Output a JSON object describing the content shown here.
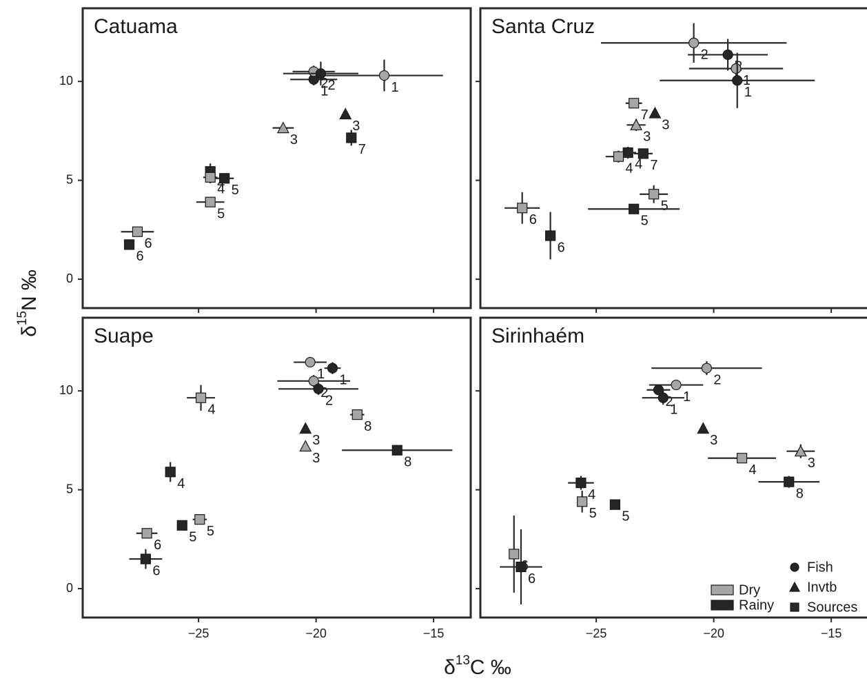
{
  "axis_labels": {
    "xlabel": [
      "δ",
      "13",
      "C ‰"
    ],
    "ylabel": [
      "δ",
      "15",
      "N ‰"
    ]
  },
  "legend": {
    "corner": "lower right",
    "seasons": [
      {
        "name": "Dry",
        "color": "#a6a6a6"
      },
      {
        "name": "Rainy",
        "color": "#262626"
      }
    ],
    "groups": [
      {
        "name": "Fish",
        "marker": "circle"
      },
      {
        "name": "Invtb",
        "marker": "triangle"
      },
      {
        "name": "Sources",
        "marker": "square"
      }
    ]
  },
  "chart_data": [
    {
      "type": "scatter",
      "title": "Catuama",
      "xlim": [
        -29.93,
        -13.42
      ],
      "ylim": [
        -1.46,
        13.7
      ],
      "xticks": [
        {
          "value": -25,
          "label": "−25"
        },
        {
          "value": -20,
          "label": "−20"
        },
        {
          "value": -15,
          "label": "−15"
        }
      ],
      "yticks": [
        0,
        5,
        10
      ],
      "points": [
        {
          "x": -17.1,
          "y": 10.3,
          "xerr": 2.5,
          "yerr": 0.8,
          "label": "1",
          "group": "Fish",
          "season": "Dry"
        },
        {
          "x": -20.1,
          "y": 10.1,
          "xerr": 1.0,
          "yerr": 0.3,
          "label": "1",
          "group": "Fish",
          "season": "Rainy"
        },
        {
          "x": -20.1,
          "y": 10.5,
          "xerr": 0.9,
          "yerr": 0.3,
          "label": "2",
          "group": "Fish",
          "season": "Dry"
        },
        {
          "x": -19.8,
          "y": 10.4,
          "xerr": 1.6,
          "yerr": 0.6,
          "label": "2",
          "group": "Fish",
          "season": "Rainy"
        },
        {
          "x": -18.75,
          "y": 8.35,
          "label": "3",
          "group": "Invtb",
          "season": "Rainy"
        },
        {
          "x": -21.4,
          "y": 7.65,
          "xerr": 0.45,
          "yerr": 0.25,
          "label": "3",
          "group": "Invtb",
          "season": "Dry"
        },
        {
          "x": -18.5,
          "y": 7.15,
          "xerr": 0.2,
          "yerr": 0.4,
          "label": "7",
          "group": "Sources",
          "season": "Rainy"
        },
        {
          "x": -24.5,
          "y": 5.45,
          "xerr": 0.15,
          "yerr": 0.4,
          "label": "4",
          "group": "Sources",
          "season": "Rainy"
        },
        {
          "x": -24.5,
          "y": 5.15,
          "xerr": 0.3,
          "yerr": 0.3,
          "label": "4",
          "group": "Sources",
          "season": "Dry"
        },
        {
          "x": -23.9,
          "y": 5.1,
          "xerr": 0.4,
          "label": "5",
          "group": "Sources",
          "season": "Rainy"
        },
        {
          "x": -24.5,
          "y": 3.9,
          "xerr": 0.6,
          "label": "5",
          "group": "Sources",
          "season": "Dry"
        },
        {
          "x": -27.6,
          "y": 2.4,
          "xerr": 0.7,
          "yerr": 0.2,
          "label": "6",
          "group": "Sources",
          "season": "Dry"
        },
        {
          "x": -27.95,
          "y": 1.75,
          "label": "6",
          "group": "Sources",
          "season": "Rainy"
        }
      ]
    },
    {
      "type": "scatter",
      "title": "Santa Cruz",
      "xlim": [
        -29.93,
        -13.42
      ],
      "ylim": [
        -1.46,
        13.7
      ],
      "xticks": [
        {
          "value": -25,
          "label": "−25"
        },
        {
          "value": -20,
          "label": "−20"
        },
        {
          "value": -15,
          "label": "−15"
        }
      ],
      "yticks": [
        0,
        5,
        10
      ],
      "points": [
        {
          "x": -20.85,
          "y": 11.95,
          "xerr": 3.95,
          "yerr": 1.0,
          "label": "2",
          "group": "Fish",
          "season": "Dry"
        },
        {
          "x": -19.4,
          "y": 11.35,
          "xerr": 1.7,
          "yerr": 0.8,
          "label": "2",
          "group": "Fish",
          "season": "Rainy"
        },
        {
          "x": -19.05,
          "y": 10.65,
          "xerr": 2.0,
          "yerr": 0.4,
          "label": "1",
          "group": "Fish",
          "season": "Dry"
        },
        {
          "x": -19.0,
          "y": 10.05,
          "xerr": 3.3,
          "yerr": 1.4,
          "label": "1",
          "group": "Fish",
          "season": "Rainy"
        },
        {
          "x": -23.4,
          "y": 8.9,
          "xerr": 0.35,
          "label": "7",
          "group": "Sources",
          "season": "Dry"
        },
        {
          "x": -22.5,
          "y": 8.4,
          "label": "3",
          "group": "Invtb",
          "season": "Rainy"
        },
        {
          "x": -23.3,
          "y": 7.8,
          "xerr": 0.4,
          "yerr": 0.3,
          "label": "3",
          "group": "Invtb",
          "season": "Dry"
        },
        {
          "x": -23.65,
          "y": 6.4,
          "xerr": 0.35,
          "yerr": 0.3,
          "label": "4",
          "group": "Sources",
          "season": "Rainy"
        },
        {
          "x": -24.05,
          "y": 6.2,
          "xerr": 0.55,
          "yerr": 0.3,
          "label": "4",
          "group": "Sources",
          "season": "Dry"
        },
        {
          "x": -23.0,
          "y": 6.35,
          "xerr": 0.4,
          "label": "7",
          "group": "Sources",
          "season": "Rainy"
        },
        {
          "x": -22.55,
          "y": 4.3,
          "xerr": 0.6,
          "yerr": 0.45,
          "label": "5",
          "group": "Sources",
          "season": "Dry"
        },
        {
          "x": -23.4,
          "y": 3.55,
          "xerr": 1.95,
          "label": "5",
          "group": "Sources",
          "season": "Rainy"
        },
        {
          "x": -28.15,
          "y": 3.6,
          "xerr": 0.75,
          "yerr": 0.8,
          "label": "6",
          "group": "Sources",
          "season": "Dry"
        },
        {
          "x": -26.95,
          "y": 2.2,
          "yerr": 1.2,
          "label": "6",
          "group": "Sources",
          "season": "Rainy"
        }
      ]
    },
    {
      "type": "scatter",
      "title": "Suape",
      "xlim": [
        -29.93,
        -13.42
      ],
      "ylim": [
        -1.46,
        13.7
      ],
      "xticks": [
        {
          "value": -25,
          "label": "−25"
        },
        {
          "value": -20,
          "label": "−20"
        },
        {
          "value": -15,
          "label": "−15"
        }
      ],
      "yticks": [
        0,
        5,
        10
      ],
      "points": [
        {
          "x": -20.25,
          "y": 11.45,
          "xerr": 0.7,
          "label": "1",
          "group": "Fish",
          "season": "Dry"
        },
        {
          "x": -19.3,
          "y": 11.15,
          "xerr": 0.35,
          "yerr": 0.3,
          "label": "1",
          "group": "Fish",
          "season": "Rainy"
        },
        {
          "x": -20.1,
          "y": 10.5,
          "xerr": 1.55,
          "yerr": 0.3,
          "label": "2",
          "group": "Fish",
          "season": "Dry"
        },
        {
          "x": -19.9,
          "y": 10.1,
          "xerr": 1.7,
          "yerr": 0.3,
          "label": "2",
          "group": "Fish",
          "season": "Rainy"
        },
        {
          "x": -24.9,
          "y": 9.65,
          "xerr": 0.6,
          "yerr": 0.65,
          "label": "4",
          "group": "Sources",
          "season": "Dry"
        },
        {
          "x": -18.25,
          "y": 8.8,
          "xerr": 0.3,
          "label": "8",
          "group": "Sources",
          "season": "Dry"
        },
        {
          "x": -20.45,
          "y": 8.1,
          "label": "3",
          "group": "Invtb",
          "season": "Rainy"
        },
        {
          "x": -20.45,
          "y": 7.2,
          "yerr": 0.25,
          "label": "3",
          "group": "Invtb",
          "season": "Dry"
        },
        {
          "x": -16.55,
          "y": 7.0,
          "xerr": 2.35,
          "label": "8",
          "group": "Sources",
          "season": "Rainy"
        },
        {
          "x": -26.2,
          "y": 5.9,
          "yerr": 0.5,
          "label": "4",
          "group": "Sources",
          "season": "Rainy"
        },
        {
          "x": -24.95,
          "y": 3.5,
          "xerr": 0.3,
          "label": "5",
          "group": "Sources",
          "season": "Dry"
        },
        {
          "x": -25.7,
          "y": 3.2,
          "xerr": 0.2,
          "yerr": 0.2,
          "label": "5",
          "group": "Sources",
          "season": "Rainy"
        },
        {
          "x": -27.2,
          "y": 2.8,
          "xerr": 0.45,
          "label": "6",
          "group": "Sources",
          "season": "Dry"
        },
        {
          "x": -27.25,
          "y": 1.5,
          "xerr": 0.7,
          "yerr": 0.5,
          "label": "6",
          "group": "Sources",
          "season": "Rainy"
        }
      ]
    },
    {
      "type": "scatter",
      "title": "Sirinhaém",
      "xlim": [
        -29.93,
        -13.42
      ],
      "ylim": [
        -1.46,
        13.7
      ],
      "xticks": [
        {
          "value": -25,
          "label": "−25"
        },
        {
          "value": -20,
          "label": "−20"
        },
        {
          "value": -15,
          "label": "−15"
        }
      ],
      "yticks": [
        0,
        5,
        10
      ],
      "points": [
        {
          "x": -20.3,
          "y": 11.15,
          "xerr": 2.35,
          "yerr": 0.35,
          "label": "2",
          "group": "Fish",
          "season": "Dry"
        },
        {
          "x": -21.6,
          "y": 10.3,
          "xerr": 1.15,
          "label": "1",
          "group": "Fish",
          "season": "Dry"
        },
        {
          "x": -22.35,
          "y": 10.05,
          "xerr": 0.5,
          "label": "2",
          "group": "Fish",
          "season": "Rainy"
        },
        {
          "x": -22.15,
          "y": 9.65,
          "xerr": 0.9,
          "yerr": 0.35,
          "label": "1",
          "group": "Fish",
          "season": "Rainy"
        },
        {
          "x": -20.45,
          "y": 8.1,
          "label": "3",
          "group": "Invtb",
          "season": "Rainy"
        },
        {
          "x": -16.3,
          "y": 6.95,
          "xerr": 0.6,
          "yerr": 0.35,
          "label": "3",
          "group": "Invtb",
          "season": "Dry"
        },
        {
          "x": -18.8,
          "y": 6.6,
          "xerr": 1.45,
          "label": "4",
          "group": "Sources",
          "season": "Dry"
        },
        {
          "x": -16.8,
          "y": 5.4,
          "xerr": 1.3,
          "yerr": 0.3,
          "label": "8",
          "group": "Sources",
          "season": "Rainy"
        },
        {
          "x": -25.65,
          "y": 5.35,
          "xerr": 0.55,
          "yerr": 0.35,
          "label": "4",
          "group": "Sources",
          "season": "Rainy"
        },
        {
          "x": -25.6,
          "y": 4.4,
          "yerr": 0.55,
          "label": "5",
          "group": "Sources",
          "season": "Dry"
        },
        {
          "x": -24.2,
          "y": 4.25,
          "label": "5",
          "group": "Sources",
          "season": "Rainy"
        },
        {
          "x": -28.5,
          "y": 1.75,
          "yerr": 1.95,
          "label": "6",
          "group": "Sources",
          "season": "Dry"
        },
        {
          "x": -28.2,
          "y": 1.1,
          "xerr": 0.9,
          "yerr": 1.9,
          "label": "6",
          "group": "Sources",
          "season": "Rainy"
        }
      ]
    }
  ]
}
